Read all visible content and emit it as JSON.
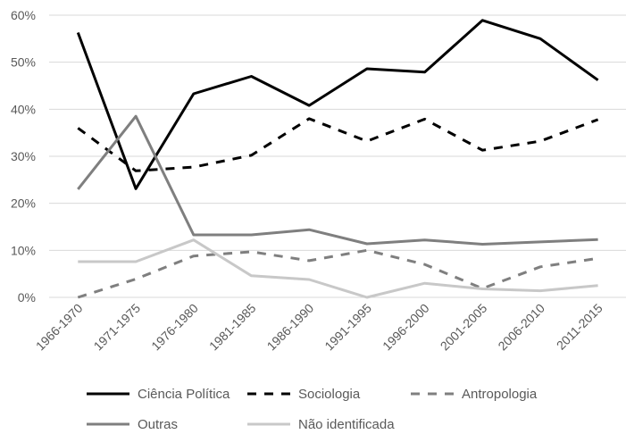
{
  "chart_data": {
    "type": "line",
    "categories": [
      "1966-1970",
      "1971-1975",
      "1976-1980",
      "1981-1985",
      "1986-1990",
      "1991-1995",
      "1996-2000",
      "2001-2005",
      "2006-2010",
      "2011-2015"
    ],
    "ylim": [
      0,
      60
    ],
    "y_ticks": [
      0,
      10,
      20,
      30,
      40,
      50,
      60
    ],
    "y_tick_labels": [
      "0%",
      "10%",
      "20%",
      "30%",
      "40%",
      "50%",
      "60%"
    ],
    "grid": true,
    "legend_position": "bottom",
    "series": [
      {
        "name": "Ciência Política",
        "color": "#000000",
        "dash": "solid",
        "values": [
          56.3,
          23.1,
          43.3,
          47.0,
          40.8,
          48.6,
          47.9,
          58.9,
          55.0,
          46.2
        ]
      },
      {
        "name": "Sociologia",
        "color": "#000000",
        "dash": "dashed",
        "values": [
          36.0,
          26.9,
          27.7,
          30.2,
          38.0,
          33.2,
          37.9,
          31.3,
          33.2,
          37.8
        ]
      },
      {
        "name": "Antropologia",
        "color": "#7f7f7f",
        "dash": "dashed",
        "values": [
          0.0,
          3.9,
          8.8,
          9.7,
          7.8,
          10.0,
          7.0,
          1.9,
          6.5,
          8.3
        ]
      },
      {
        "name": "Outras",
        "color": "#7f7f7f",
        "dash": "solid",
        "values": [
          23.0,
          38.5,
          13.3,
          13.3,
          14.4,
          11.4,
          12.2,
          11.3,
          11.8,
          12.3
        ]
      },
      {
        "name": "Não identificada",
        "color": "#c8c8c8",
        "dash": "solid",
        "values": [
          7.6,
          7.6,
          12.2,
          4.6,
          3.8,
          0.0,
          3.0,
          1.8,
          1.4,
          2.5
        ]
      }
    ]
  }
}
